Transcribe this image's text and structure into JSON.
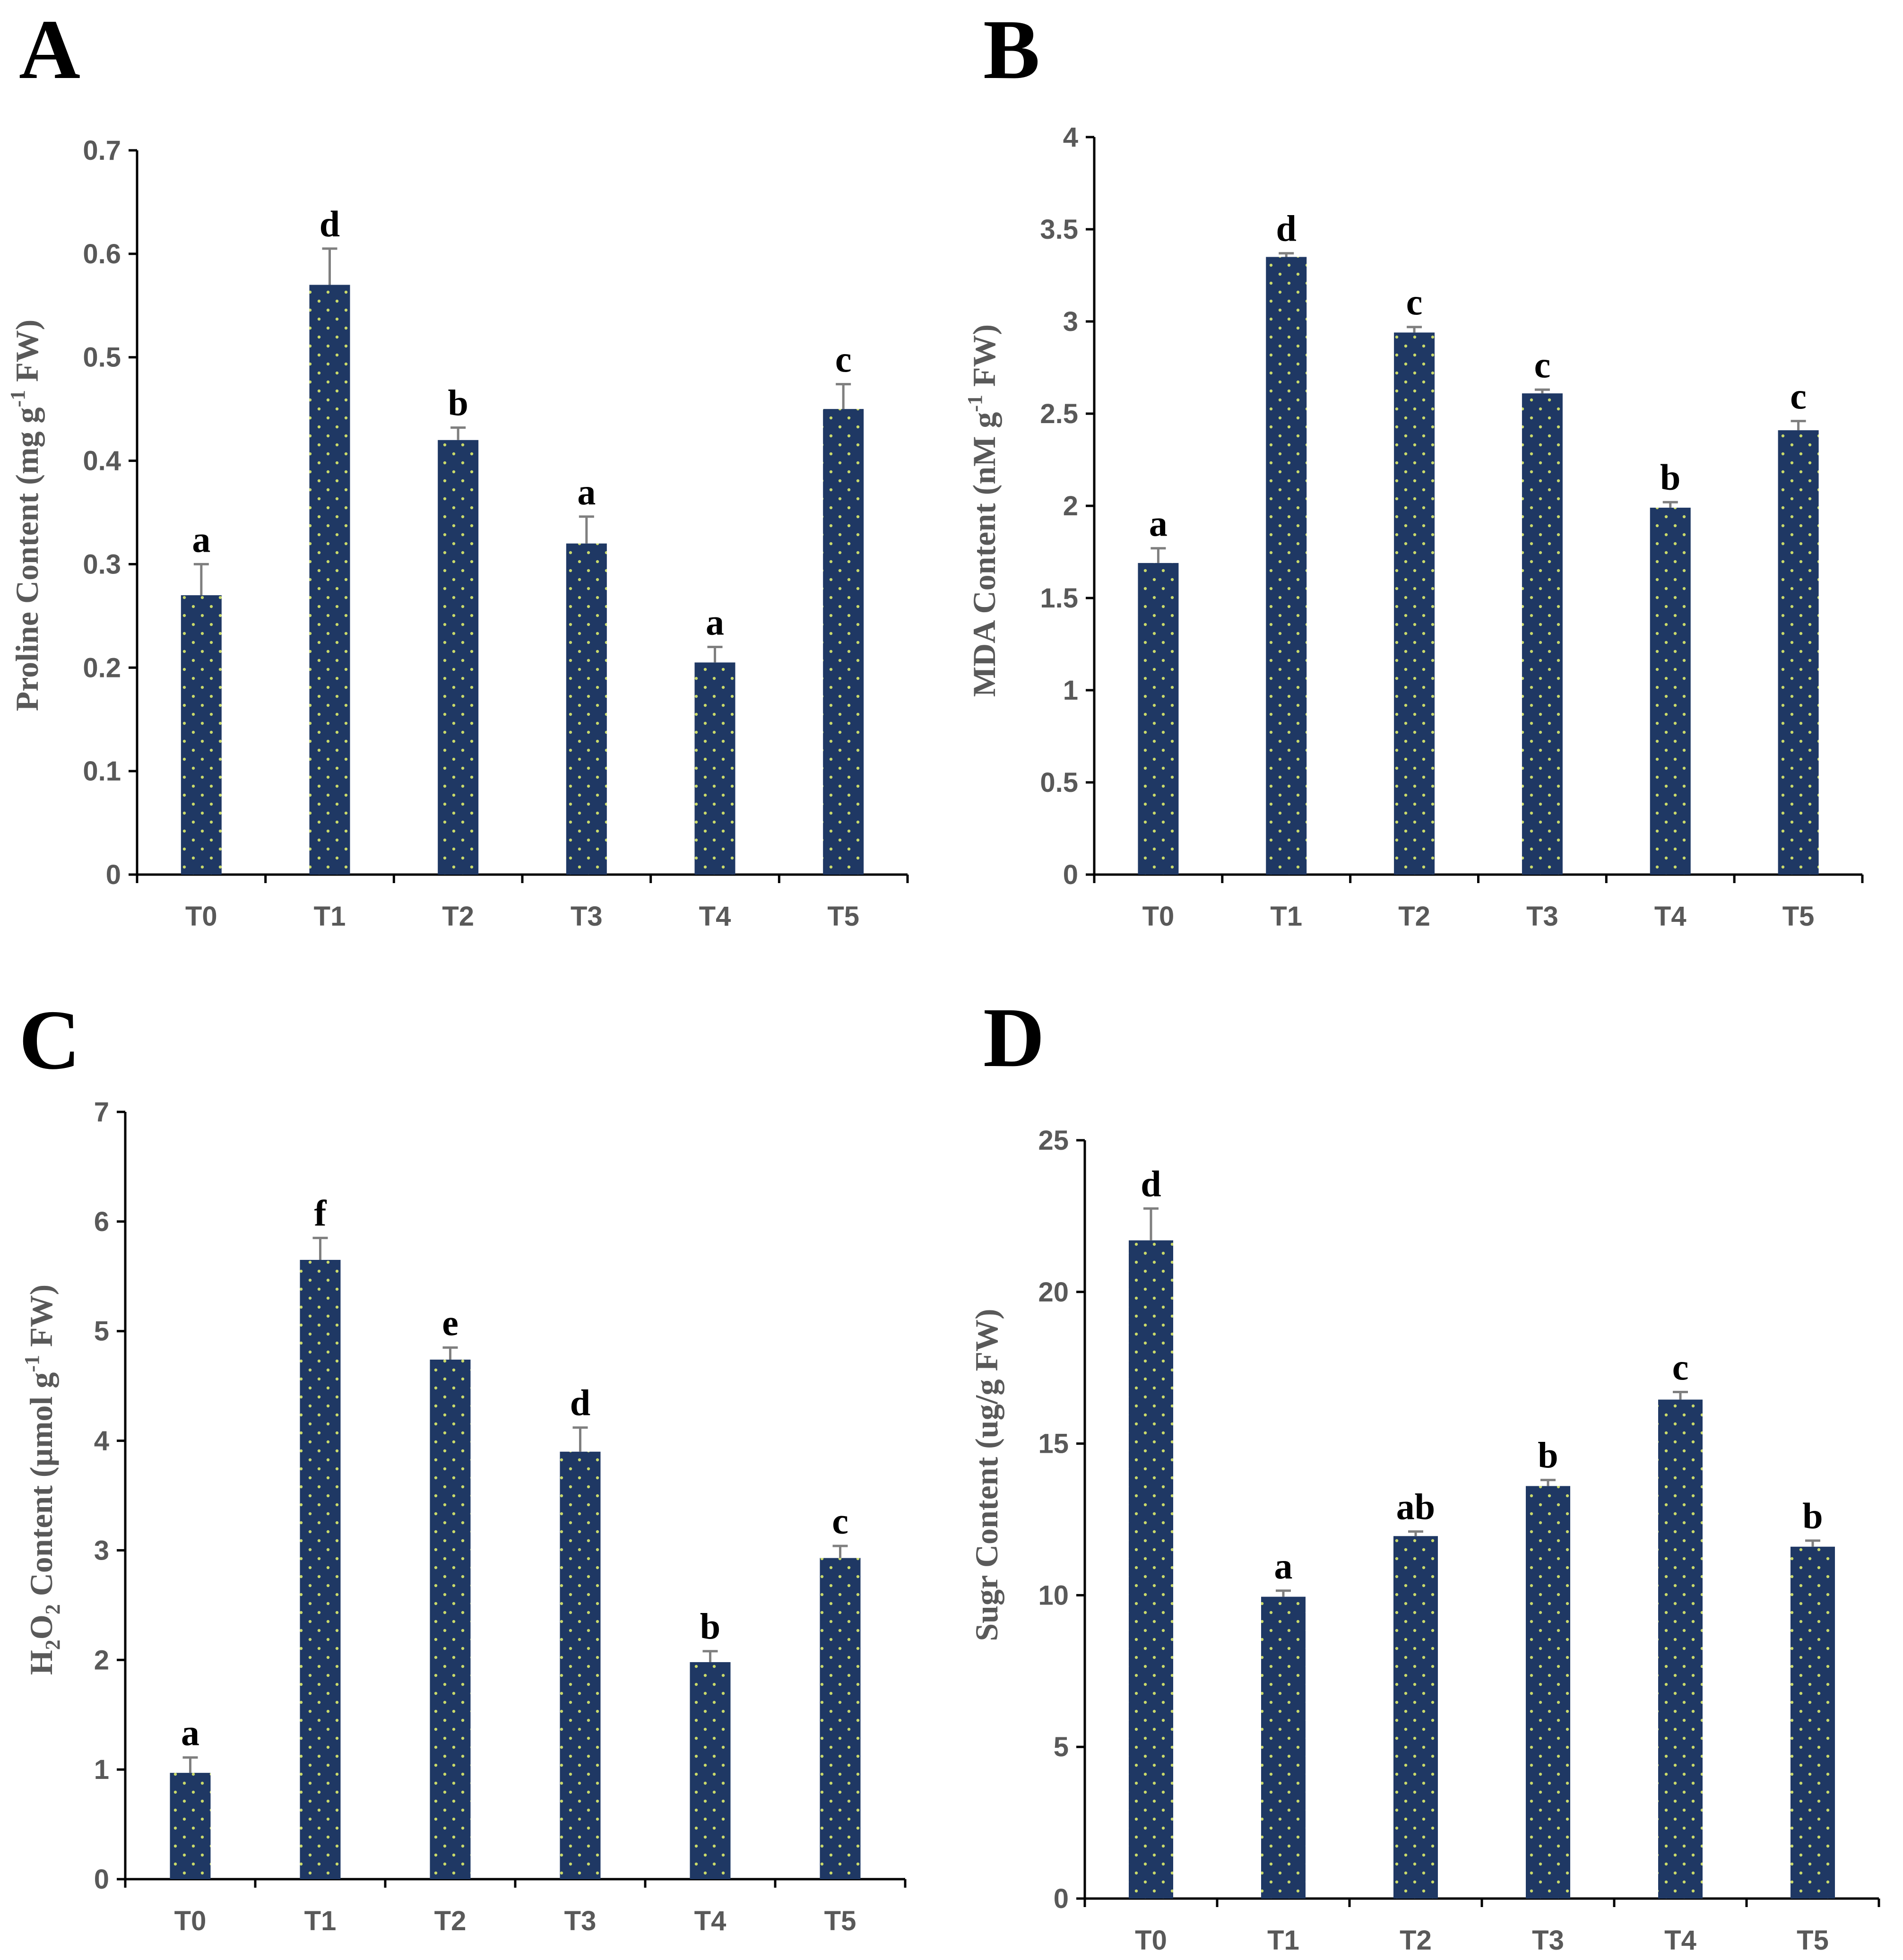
{
  "colors": {
    "bar": "#1f3864",
    "bar_dot": "#c9d96a",
    "tick_text": "#595959",
    "error_bar": "#7f7f7f"
  },
  "chart_data": [
    {
      "id": "A",
      "type": "bar",
      "panel_label": "A",
      "title": "",
      "categories": [
        "T0",
        "T1",
        "T2",
        "T3",
        "T4",
        "T5"
      ],
      "values": [
        0.27,
        0.57,
        0.42,
        0.32,
        0.205,
        0.45
      ],
      "errors": [
        0.03,
        0.035,
        0.012,
        0.026,
        0.015,
        0.024
      ],
      "letters": [
        "a",
        "d",
        "b",
        "a",
        "a",
        "c"
      ],
      "ylim": [
        0,
        0.7
      ],
      "yticks": [
        "0",
        "0.1",
        "0.2",
        "0.3",
        "0.4",
        "0.5",
        "0.6",
        "0.7"
      ],
      "ylabel": {
        "prefix": "Proline Content (mg g",
        "sup": "-1",
        "suffix": " FW)"
      },
      "xlabel": ""
    },
    {
      "id": "B",
      "type": "bar",
      "panel_label": "B",
      "title": "",
      "categories": [
        "T0",
        "T1",
        "T2",
        "T3",
        "T4",
        "T5"
      ],
      "values": [
        1.69,
        3.35,
        2.94,
        2.61,
        1.99,
        2.41
      ],
      "errors": [
        0.08,
        0.02,
        0.03,
        0.02,
        0.03,
        0.05
      ],
      "letters": [
        "a",
        "d",
        "c",
        "c",
        "b",
        "c"
      ],
      "ylim": [
        0,
        4
      ],
      "yticks": [
        "0",
        "0.5",
        "1",
        "1.5",
        "2",
        "2.5",
        "3",
        "3.5",
        "4"
      ],
      "ylabel": {
        "prefix": "MDA Content (nM g",
        "sup": "-1",
        "suffix": " FW)"
      },
      "xlabel": ""
    },
    {
      "id": "C",
      "type": "bar",
      "panel_label": "C",
      "title": "",
      "categories": [
        "T0",
        "T1",
        "T2",
        "T3",
        "T4",
        "T5"
      ],
      "values": [
        0.97,
        5.65,
        4.74,
        3.9,
        1.98,
        2.93
      ],
      "errors": [
        0.14,
        0.2,
        0.11,
        0.22,
        0.1,
        0.11
      ],
      "letters": [
        "a",
        "f",
        "e",
        "d",
        "b",
        "c"
      ],
      "ylim": [
        0,
        7
      ],
      "yticks": [
        "0",
        "1",
        "2",
        "3",
        "4",
        "5",
        "6",
        "7"
      ],
      "ylabel": {
        "h": "H",
        "sub1": "2",
        "o": "O",
        "sub2": "2",
        "mid": " Content (µmol g",
        "sup": "-1",
        "suffix": " FW)"
      },
      "xlabel": ""
    },
    {
      "id": "D",
      "type": "bar",
      "panel_label": "D",
      "title": "",
      "categories": [
        "T0",
        "T1",
        "T2",
        "T3",
        "T4",
        "T5"
      ],
      "values": [
        21.7,
        9.95,
        11.95,
        13.6,
        16.45,
        11.6
      ],
      "errors": [
        1.05,
        0.2,
        0.15,
        0.2,
        0.25,
        0.2
      ],
      "letters": [
        "d",
        "a",
        "ab",
        "b",
        "c",
        "b"
      ],
      "ylim": [
        0,
        25
      ],
      "yticks": [
        "0",
        "5",
        "10",
        "15",
        "20",
        "25"
      ],
      "ylabel": {
        "prefix": "Sugr Content (ug/g FW)"
      },
      "xlabel": ""
    }
  ]
}
